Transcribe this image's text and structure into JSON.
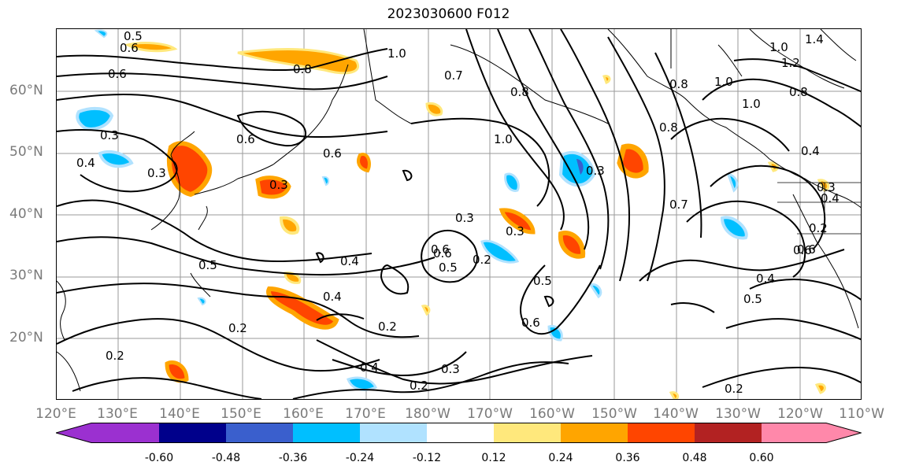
{
  "title": "2023030600 F012",
  "lat_labels": [
    "60°N",
    "50°N",
    "40°N",
    "30°N",
    "20°N"
  ],
  "lon_labels": [
    "120°E",
    "130°E",
    "140°E",
    "150°E",
    "160°E",
    "170°E",
    "180°W",
    "170°W",
    "160°W",
    "150°W",
    "140°W",
    "130°W",
    "120°W",
    "110°W"
  ],
  "colorbar": {
    "ticks": [
      "-0.60",
      "-0.48",
      "-0.36",
      "-0.24",
      "-0.12",
      "0.12",
      "0.24",
      "0.36",
      "0.48",
      "0.60"
    ],
    "colors": [
      "#9b30d0",
      "#00008b",
      "#3a5fcd",
      "#00bfff",
      "#b0e2ff",
      "#ffffff",
      "#ffe87c",
      "#ffa500",
      "#ff4500",
      "#b22222",
      "#ff88aa"
    ]
  },
  "contour_labels": [
    "0.5",
    "0.6",
    "0.6",
    "0.8",
    "1.0",
    "0.7",
    "0.8",
    "1.0",
    "1.2",
    "1.4",
    "0.8",
    "1.0",
    "1.0",
    "0.8",
    "0.3",
    "0.4",
    "0.3",
    "0.6",
    "0.6",
    "0.3",
    "0.3",
    "0.6",
    "1.0",
    "0.8",
    "0.3",
    "0.7",
    "0.4",
    "0.3",
    "0.4",
    "0.6",
    "0.5",
    "0.4",
    "0.3",
    "0.2",
    "0.6",
    "0.5",
    "0.2",
    "0.5",
    "0.6",
    "0.2",
    "0.4",
    "0.5",
    "0.4",
    "0.6",
    "0.2",
    "0.4",
    "0.2",
    "0.3",
    "0.2",
    "0.2"
  ]
}
